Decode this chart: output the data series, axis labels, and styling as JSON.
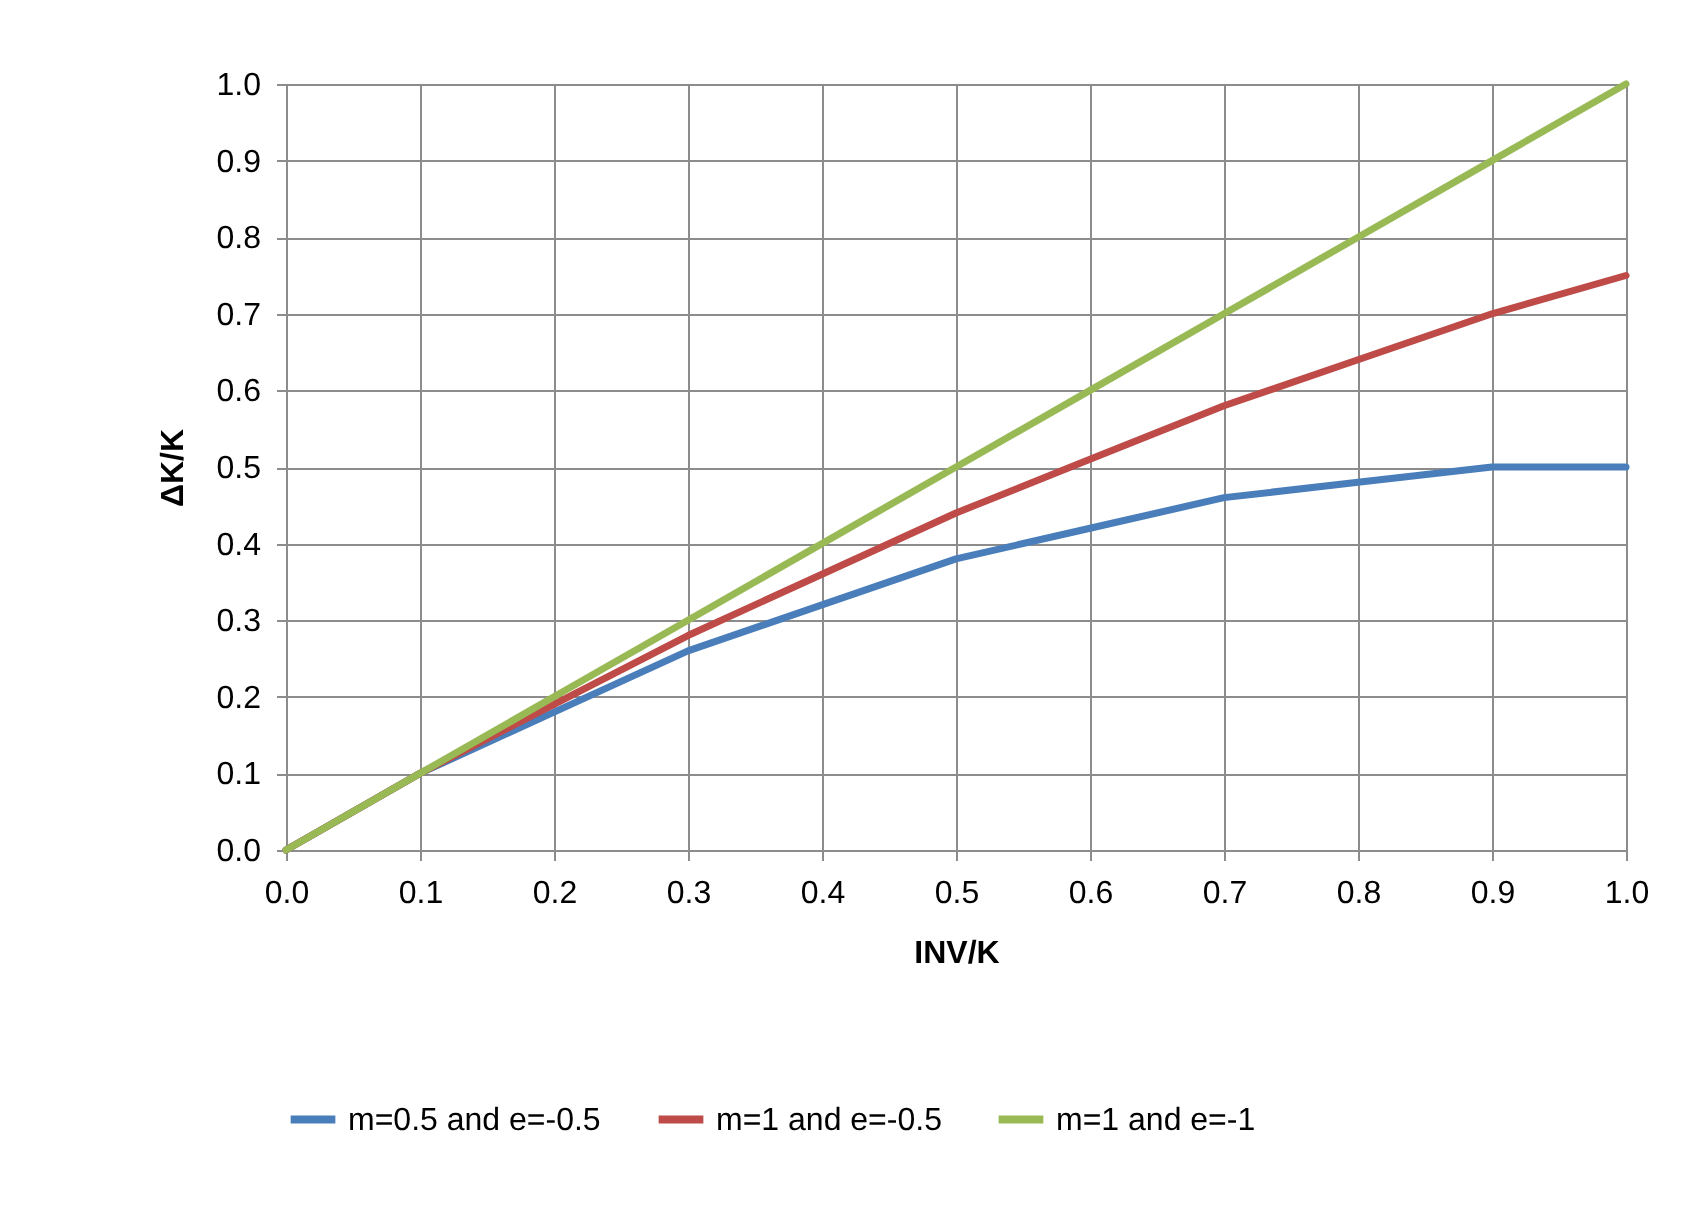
{
  "chart_data": {
    "type": "line",
    "xlabel": "INV/K",
    "ylabel": "ΔK/K",
    "x": [
      0,
      0.1,
      0.2,
      0.3,
      0.4,
      0.5,
      0.6,
      0.7,
      0.8,
      0.9,
      1.0
    ],
    "series": [
      {
        "name": "m=0.5 and e=-0.5",
        "color": "#4a7ebb",
        "values": [
          0,
          0.1,
          0.18,
          0.26,
          0.32,
          0.38,
          0.42,
          0.46,
          0.48,
          0.5,
          0.5
        ]
      },
      {
        "name": "m=1 and e=-0.5",
        "color": "#be4b48",
        "values": [
          0,
          0.1,
          0.19,
          0.28,
          0.36,
          0.44,
          0.51,
          0.58,
          0.64,
          0.7,
          0.75
        ]
      },
      {
        "name": "m=1 and e=-1",
        "color": "#98b954",
        "values": [
          0,
          0.1,
          0.2,
          0.3,
          0.4,
          0.5,
          0.6,
          0.7,
          0.8,
          0.9,
          1.0
        ]
      }
    ],
    "xlim": [
      0,
      1
    ],
    "ylim": [
      0,
      1
    ],
    "xticks": [
      {
        "value": 0,
        "label": "0.0"
      },
      0.1,
      0.2,
      0.3,
      0.4,
      0.5,
      0.6,
      0.7,
      0.8,
      0.9,
      {
        "value": 1,
        "label": "1.0"
      }
    ],
    "yticks": [
      {
        "value": 0,
        "label": "0.0"
      },
      0.1,
      0.2,
      0.3,
      0.4,
      0.5,
      0.6,
      0.7,
      0.8,
      0.9,
      {
        "value": 1,
        "label": "1.0"
      }
    ],
    "grid": true,
    "legend": "bottom",
    "marker": "none",
    "line_style": "solid"
  }
}
